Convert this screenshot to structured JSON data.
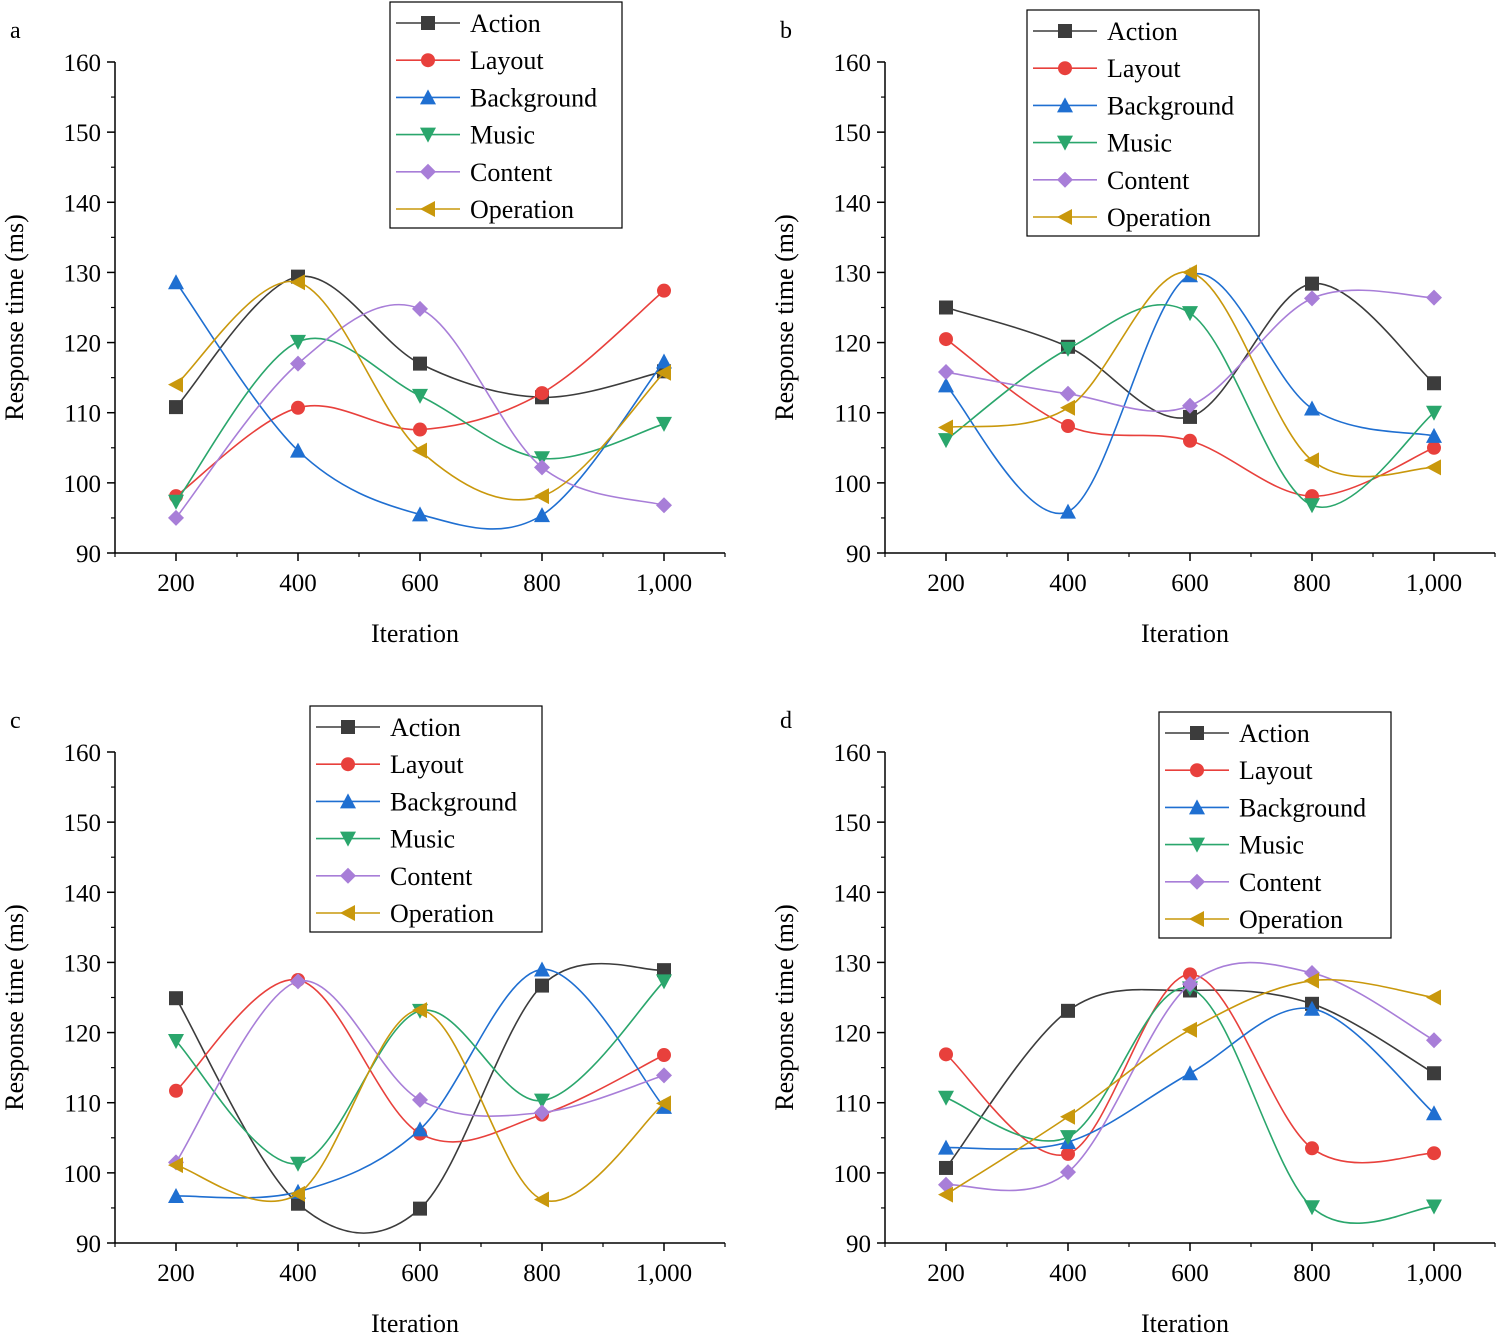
{
  "colors": {
    "Action": "#3c3c3c",
    "Layout": "#e8403c",
    "Background": "#1f6fd1",
    "Music": "#2aa66c",
    "Content": "#a87ed8",
    "Operation": "#c9980c"
  },
  "markers": {
    "Action": "square",
    "Layout": "circle",
    "Background": "triangle-up",
    "Music": "triangle-down",
    "Content": "diamond",
    "Operation": "triangle-left"
  },
  "chart_data": [
    {
      "type": "line",
      "panel": "a",
      "xlabel": "Iteration",
      "ylabel": "Response time (ms)",
      "x": [
        200,
        400,
        600,
        800,
        1000
      ],
      "x_tick_labels": [
        "200",
        "400",
        "600",
        "800",
        "1,000"
      ],
      "ylim": [
        90,
        160
      ],
      "y_ticks": [
        90,
        100,
        110,
        120,
        130,
        140,
        150,
        160
      ],
      "legend_position": "top-center",
      "series": [
        {
          "name": "Action",
          "values": [
            110.8,
            129.4,
            117.0,
            112.2,
            115.9
          ]
        },
        {
          "name": "Layout",
          "values": [
            98.1,
            110.7,
            107.6,
            112.8,
            127.4
          ]
        },
        {
          "name": "Background",
          "values": [
            128.6,
            104.6,
            95.5,
            95.4,
            117.3
          ]
        },
        {
          "name": "Music",
          "values": [
            97.3,
            120.1,
            112.4,
            103.5,
            108.4
          ]
        },
        {
          "name": "Content",
          "values": [
            95.0,
            117.0,
            124.8,
            102.2,
            96.8
          ]
        },
        {
          "name": "Operation",
          "values": [
            114.0,
            128.6,
            104.6,
            98.1,
            115.7
          ]
        }
      ]
    },
    {
      "type": "line",
      "panel": "b",
      "xlabel": "Iteration",
      "ylabel": "Response time (ms)",
      "x": [
        200,
        400,
        600,
        800,
        1000
      ],
      "x_tick_labels": [
        "200",
        "400",
        "600",
        "800",
        "1,000"
      ],
      "ylim": [
        90,
        160
      ],
      "y_ticks": [
        90,
        100,
        110,
        120,
        130,
        140,
        150,
        160
      ],
      "legend_position": "top-center",
      "series": [
        {
          "name": "Action",
          "values": [
            125.0,
            119.4,
            109.4,
            128.4,
            114.2
          ]
        },
        {
          "name": "Layout",
          "values": [
            120.5,
            108.1,
            106.0,
            98.1,
            105.0
          ]
        },
        {
          "name": "Background",
          "values": [
            113.9,
            95.9,
            129.6,
            110.6,
            106.7
          ]
        },
        {
          "name": "Music",
          "values": [
            106.1,
            119.1,
            124.2,
            96.8,
            110.0
          ]
        },
        {
          "name": "Content",
          "values": [
            115.8,
            112.7,
            111.0,
            126.3,
            126.4
          ]
        },
        {
          "name": "Operation",
          "values": [
            107.9,
            110.7,
            130.0,
            103.2,
            102.2
          ]
        }
      ]
    },
    {
      "type": "line",
      "panel": "c",
      "xlabel": "Iteration",
      "ylabel": "Response time (ms)",
      "x": [
        200,
        400,
        600,
        800,
        1000
      ],
      "x_tick_labels": [
        "200",
        "400",
        "600",
        "800",
        "1,000"
      ],
      "ylim": [
        90,
        160
      ],
      "y_ticks": [
        90,
        100,
        110,
        120,
        130,
        140,
        150,
        160
      ],
      "legend_position": "top-center",
      "series": [
        {
          "name": "Action",
          "values": [
            124.9,
            95.6,
            94.9,
            126.7,
            128.9
          ]
        },
        {
          "name": "Layout",
          "values": [
            111.7,
            127.5,
            105.6,
            108.3,
            116.8
          ]
        },
        {
          "name": "Background",
          "values": [
            96.7,
            97.3,
            106.2,
            129.0,
            109.4
          ]
        },
        {
          "name": "Music",
          "values": [
            118.8,
            101.3,
            123.1,
            110.3,
            127.3
          ]
        },
        {
          "name": "Content",
          "values": [
            101.5,
            127.3,
            110.4,
            108.6,
            113.9
          ]
        },
        {
          "name": "Operation",
          "values": [
            101.1,
            97.0,
            123.2,
            96.2,
            109.9
          ]
        }
      ]
    },
    {
      "type": "line",
      "panel": "d",
      "xlabel": "Iteration",
      "ylabel": "Response time (ms)",
      "x": [
        200,
        400,
        600,
        800,
        1000
      ],
      "x_tick_labels": [
        "200",
        "400",
        "600",
        "800",
        "1,000"
      ],
      "ylim": [
        90,
        160
      ],
      "y_ticks": [
        90,
        100,
        110,
        120,
        130,
        140,
        150,
        160
      ],
      "legend_position": "top-right",
      "series": [
        {
          "name": "Action",
          "values": [
            100.7,
            123.1,
            126.0,
            124.1,
            114.2
          ]
        },
        {
          "name": "Layout",
          "values": [
            116.9,
            102.7,
            128.3,
            103.5,
            102.8
          ]
        },
        {
          "name": "Background",
          "values": [
            103.6,
            104.4,
            114.2,
            123.4,
            108.5
          ]
        },
        {
          "name": "Music",
          "values": [
            110.7,
            105.1,
            126.3,
            95.1,
            95.2
          ]
        },
        {
          "name": "Content",
          "values": [
            98.3,
            100.1,
            126.9,
            128.5,
            118.9
          ]
        },
        {
          "name": "Operation",
          "values": [
            96.9,
            108.0,
            120.4,
            127.4,
            125.0
          ]
        }
      ]
    }
  ]
}
